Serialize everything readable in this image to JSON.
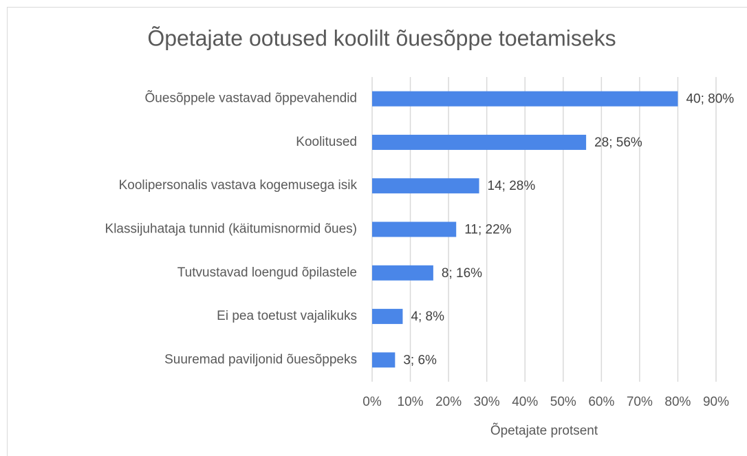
{
  "chart_data": {
    "type": "barh",
    "title": "Õpetajate ootused koolilt õuesõppe toetamiseks",
    "xlabel": "Õpetajate protsent",
    "categories": [
      "Õuesõppele vastavad õppevahendid",
      "Koolitused",
      "Koolipersonalis vastava kogemusega isik",
      "Klassijuhataja tunnid (käitumisnormid õues)",
      "Tutvustavad loengud õpilastele",
      "Ei pea toetust vajalikuks",
      "Suuremad paviljonid õuesõppeks"
    ],
    "values": [
      80,
      56,
      28,
      22,
      16,
      8,
      6
    ],
    "value_labels": [
      "40; 80%",
      "28; 56%",
      "14; 28%",
      "11; 22%",
      "8; 16%",
      "4; 8%",
      "3; 6%"
    ],
    "color": "#4a86e8",
    "xlim": [
      0,
      90
    ],
    "xticks": [
      {
        "value": 0,
        "label": "0%"
      },
      {
        "value": 10,
        "label": "10%"
      },
      {
        "value": 20,
        "label": "20%"
      },
      {
        "value": 30,
        "label": "30%"
      },
      {
        "value": 40,
        "label": "40%"
      },
      {
        "value": 50,
        "label": "50%"
      },
      {
        "value": 60,
        "label": "60%"
      },
      {
        "value": 70,
        "label": "70%"
      },
      {
        "value": 80,
        "label": "80%"
      },
      {
        "value": 90,
        "label": "90%"
      }
    ],
    "grid": true
  }
}
